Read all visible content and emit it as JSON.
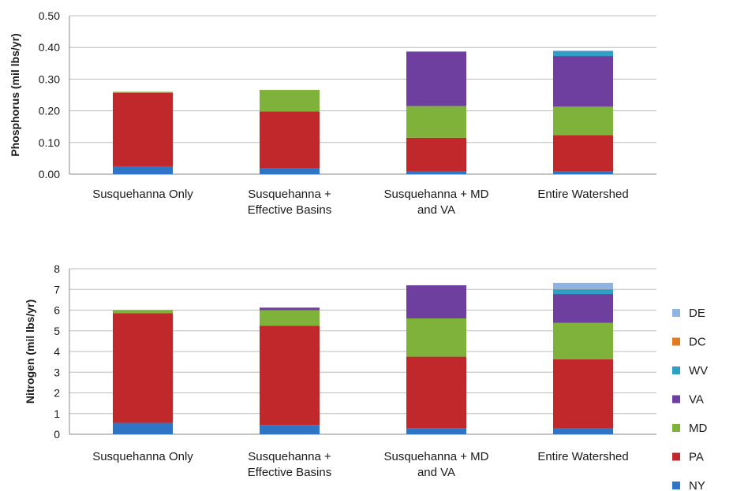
{
  "colors": {
    "NY": "#2e75c6",
    "PA": "#c0282b",
    "MD": "#7fb23a",
    "VA": "#6f3fa0",
    "WV": "#2f9fc4",
    "DC": "#e07b22",
    "DE": "#8db4e2"
  },
  "legend": {
    "items": [
      "DE",
      "DC",
      "WV",
      "VA",
      "MD",
      "PA",
      "NY"
    ]
  },
  "chart_data": [
    {
      "type": "bar",
      "stacked": true,
      "categories": [
        [
          "Susquehanna Only"
        ],
        [
          "Susquehanna +",
          "Effective Basins"
        ],
        [
          "Susquehanna + MD",
          "and VA"
        ],
        [
          "Entire Watershed"
        ]
      ],
      "series": [
        {
          "name": "NY",
          "values": [
            0.025,
            0.018,
            0.01,
            0.008
          ]
        },
        {
          "name": "PA",
          "values": [
            0.232,
            0.18,
            0.105,
            0.115
          ]
        },
        {
          "name": "MD",
          "values": [
            0.003,
            0.068,
            0.1,
            0.09
          ]
        },
        {
          "name": "VA",
          "values": [
            0,
            0,
            0.172,
            0.16
          ]
        },
        {
          "name": "WV",
          "values": [
            0,
            0,
            0,
            0.015
          ]
        },
        {
          "name": "DC",
          "values": [
            0,
            0,
            0,
            0
          ]
        },
        {
          "name": "DE",
          "values": [
            0,
            0,
            0,
            0.002
          ]
        }
      ],
      "ylabel": "Phosphorus (mil lbs/yr)",
      "ylim": [
        0,
        0.5
      ],
      "yticks": [
        "0.00",
        "0.10",
        "0.20",
        "0.30",
        "0.40",
        "0.50"
      ],
      "grid": true
    },
    {
      "type": "bar",
      "stacked": true,
      "categories": [
        [
          "Susquehanna Only"
        ],
        [
          "Susquehanna +",
          "Effective Basins"
        ],
        [
          "Susquehanna + MD",
          "and VA"
        ],
        [
          "Entire Watershed"
        ]
      ],
      "series": [
        {
          "name": "NY",
          "values": [
            0.55,
            0.45,
            0.3,
            0.28
          ]
        },
        {
          "name": "PA",
          "values": [
            5.3,
            4.8,
            3.45,
            3.35
          ]
        },
        {
          "name": "MD",
          "values": [
            0.15,
            0.75,
            1.85,
            1.75
          ]
        },
        {
          "name": "VA",
          "values": [
            0,
            0.12,
            1.6,
            1.4
          ]
        },
        {
          "name": "WV",
          "values": [
            0,
            0,
            0,
            0.22
          ]
        },
        {
          "name": "DC",
          "values": [
            0,
            0,
            0,
            0.02
          ]
        },
        {
          "name": "DE",
          "values": [
            0,
            0,
            0,
            0.3
          ]
        }
      ],
      "ylabel": "Nitrogen (mil lbs/yr)",
      "ylim": [
        0,
        8
      ],
      "yticks": [
        "0",
        "1",
        "2",
        "3",
        "4",
        "5",
        "6",
        "7",
        "8"
      ],
      "grid": true,
      "legend_position": "right"
    }
  ]
}
